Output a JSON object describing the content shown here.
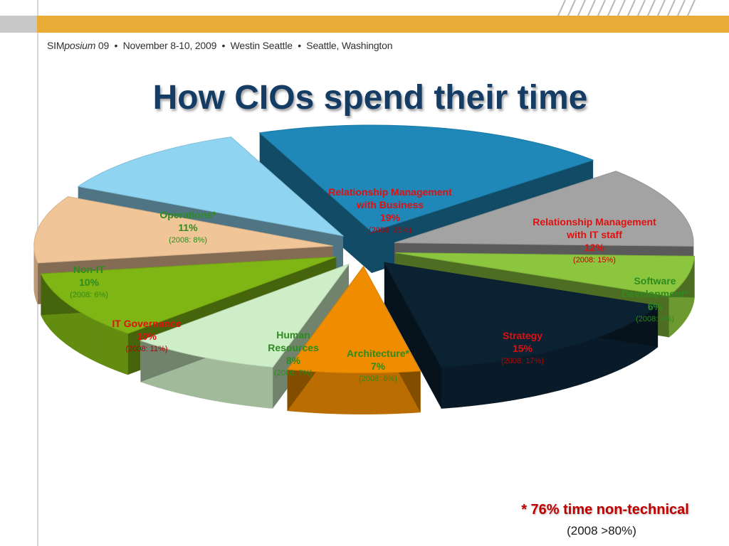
{
  "header": {
    "brand_a": "SIM",
    "brand_b": "posium",
    "brand_c": " 09",
    "event_details": "  •  November 8-10, 2009  •  Westin Seattle  •  Seattle, Washington"
  },
  "title": "How CIOs spend their time",
  "footnote": {
    "main": "* 76% time non-technical",
    "sub": "(2008 >80%)"
  },
  "colors": {
    "header_band": "#e8ab35",
    "title": "#143c64",
    "footnote": "#c00000"
  },
  "chart_data": {
    "type": "pie",
    "title": "How CIOs spend their time",
    "series": [
      {
        "name": "",
        "slices": [
          {
            "label": "Relationship Management with Business",
            "value": 19,
            "value_label": "19%",
            "prior": "(2008: 26%)",
            "color": "#1f88b8"
          },
          {
            "label": "Relationship Management with IT staff",
            "value": 12,
            "value_label": "12%",
            "prior": "(2008: 15%)",
            "color": "#a3a3a3"
          },
          {
            "label": "Software Development*",
            "value": 6,
            "value_label": "6%",
            "prior": "(2008: 4%)",
            "color": "#8cc63f"
          },
          {
            "label": "Strategy",
            "value": 15,
            "value_label": "15%",
            "prior": "(2008: 17%)",
            "color": "#0b2233"
          },
          {
            "label": "Architecture*",
            "value": 7,
            "value_label": "7%",
            "prior": "(2008: 6%)",
            "color": "#ef8c00"
          },
          {
            "label": "Human Resources",
            "value": 8,
            "value_label": "8%",
            "prior": "(2008: 7%)",
            "color": "#cdeec6"
          },
          {
            "label": "IT Governance",
            "value": 10,
            "value_label": "10%",
            "prior": "(2008: 11%)",
            "color": "#7fb514"
          },
          {
            "label": "Non-IT",
            "value": 10,
            "value_label": "10%",
            "prior": "(2008: 6%)",
            "color": "#f0c598"
          },
          {
            "label": "Operations*",
            "value": 11,
            "value_label": "11%",
            "prior": "(2008: 8%)",
            "color": "#8fd4f0"
          }
        ]
      }
    ]
  }
}
